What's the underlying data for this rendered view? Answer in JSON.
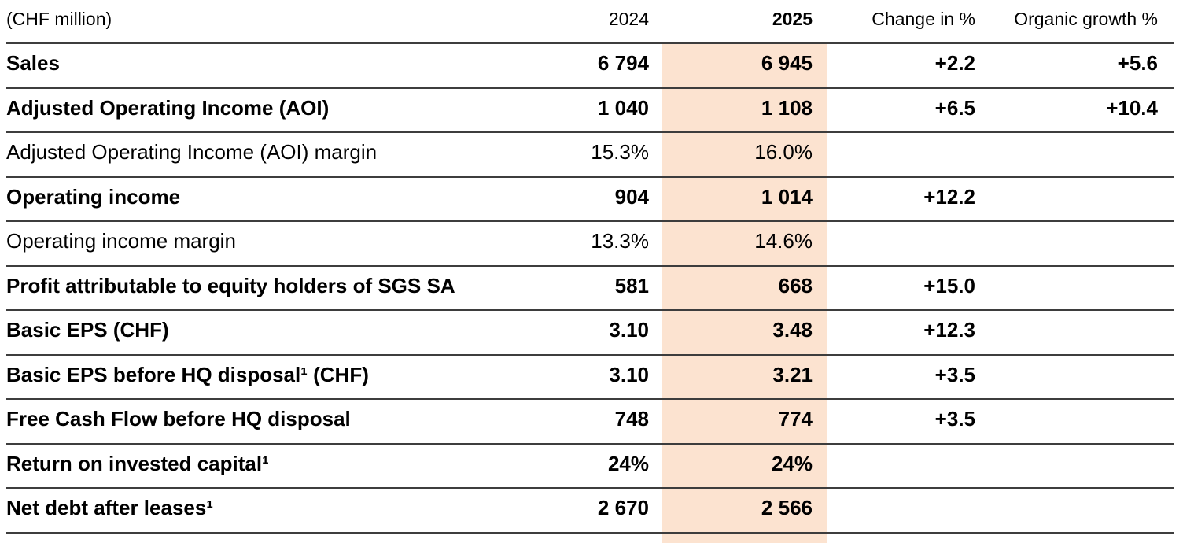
{
  "table": {
    "unit_label": "(CHF million)",
    "columns": {
      "y2024": "2024",
      "y2025": "2025",
      "change": "Change in %",
      "organic": "Organic growth %"
    },
    "highlight_color": "#fce3d0",
    "rule_color": "#3d3d3d",
    "rows": [
      {
        "label": "Sales",
        "y2024": "6 794",
        "y2025": "6 945",
        "change": "+2.2",
        "organic": "+5.6"
      },
      {
        "label": "Adjusted Operating Income (AOI)",
        "y2024": "1 040",
        "y2025": "1 108",
        "change": "+6.5",
        "organic": "+10.4"
      },
      {
        "label": "Adjusted Operating Income (AOI) margin",
        "y2024": "15.3%",
        "y2025": "16.0%",
        "change": "",
        "organic": ""
      },
      {
        "label": "Operating income",
        "y2024": "904",
        "y2025": "1 014",
        "change": "+12.2",
        "organic": ""
      },
      {
        "label": "Operating income margin",
        "y2024": "13.3%",
        "y2025": "14.6%",
        "change": "",
        "organic": ""
      },
      {
        "label": "Profit attributable to equity holders of SGS SA",
        "y2024": "581",
        "y2025": "668",
        "change": "+15.0",
        "organic": ""
      },
      {
        "label": "Basic EPS (CHF)",
        "y2024": "3.10",
        "y2025": "3.48",
        "change": "+12.3",
        "organic": ""
      },
      {
        "label": "Basic EPS before HQ disposal¹ (CHF)",
        "y2024": "3.10",
        "y2025": "3.21",
        "change": "+3.5",
        "organic": ""
      },
      {
        "label": "Free Cash Flow before HQ disposal",
        "y2024": "748",
        "y2025": "774",
        "change": "+3.5",
        "organic": ""
      },
      {
        "label": "Return on invested capital¹",
        "y2024": "24%",
        "y2025": "24%",
        "change": "",
        "organic": ""
      },
      {
        "label": "Net debt after leases¹",
        "y2024": "2 670",
        "y2025": "2 566",
        "change": "",
        "organic": ""
      }
    ]
  }
}
